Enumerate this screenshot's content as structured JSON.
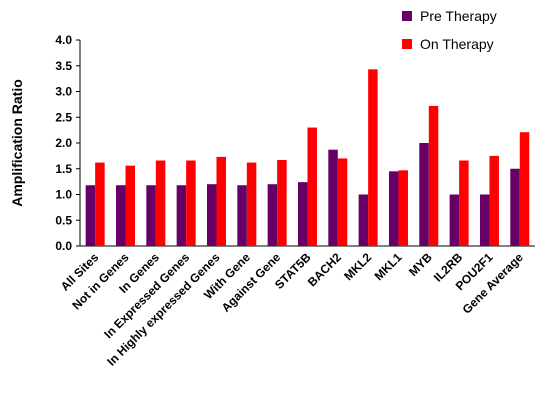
{
  "chart_data": {
    "type": "bar",
    "title": "",
    "xlabel": "",
    "ylabel": "Amplification Ratio",
    "ylim": [
      0,
      4.0
    ],
    "yticks": [
      "0.0",
      "0.5",
      "1.0",
      "1.5",
      "2.0",
      "2.5",
      "3.0",
      "3.5",
      "4.0"
    ],
    "grid": false,
    "legend_position": "top-right",
    "categories": [
      "All Sites",
      "Not in Genes",
      "In Genes",
      "In Expressed Genes",
      "In Highly expressed Genes",
      "With Gene",
      "Against Gene",
      "STAT5B",
      "BACH2",
      "MKL2",
      "MKL1",
      "MYB",
      "IL2RB",
      "POU2F1",
      "Gene Average"
    ],
    "series": [
      {
        "name": "Pre Therapy",
        "color": "#660066",
        "values": [
          1.18,
          1.18,
          1.18,
          1.18,
          1.2,
          1.18,
          1.2,
          1.24,
          1.87,
          1.0,
          1.45,
          2.0,
          1.0,
          1.0,
          1.5
        ]
      },
      {
        "name": "On Therapy",
        "color": "#ff0000",
        "values": [
          1.62,
          1.56,
          1.66,
          1.66,
          1.73,
          1.62,
          1.67,
          2.3,
          1.7,
          3.43,
          1.47,
          2.72,
          1.66,
          1.75,
          2.21
        ]
      }
    ]
  }
}
